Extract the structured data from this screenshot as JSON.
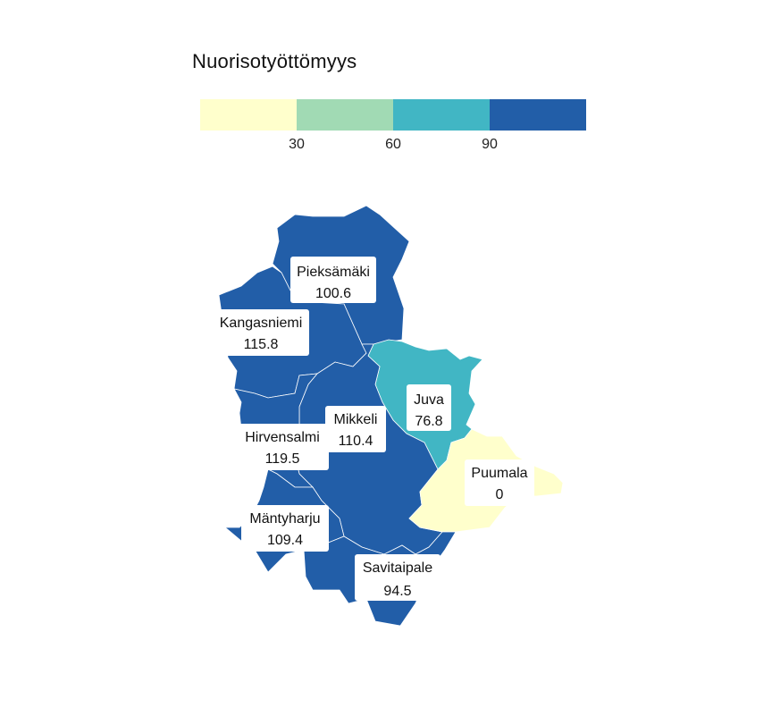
{
  "title": "Nuorisotyöttömyys",
  "legend": {
    "classes": [
      {
        "color": "#ffffcc"
      },
      {
        "color": "#a1dab4"
      },
      {
        "color": "#41b6c4"
      },
      {
        "color": "#225ea8"
      }
    ],
    "breaks": [
      "30",
      "60",
      "90"
    ]
  },
  "regions": [
    {
      "name": "Pieksämäki",
      "value": "100.6"
    },
    {
      "name": "Kangasniemi",
      "value": "115.8"
    },
    {
      "name": "Mikkeli",
      "value": "110.4"
    },
    {
      "name": "Juva",
      "value": "76.8"
    },
    {
      "name": "Hirvensalmi",
      "value": "119.5"
    },
    {
      "name": "Puumala",
      "value": "0"
    },
    {
      "name": "Mäntyharju",
      "value": "109.4"
    },
    {
      "name": "Savitaipale",
      "value": "94.5"
    }
  ]
}
